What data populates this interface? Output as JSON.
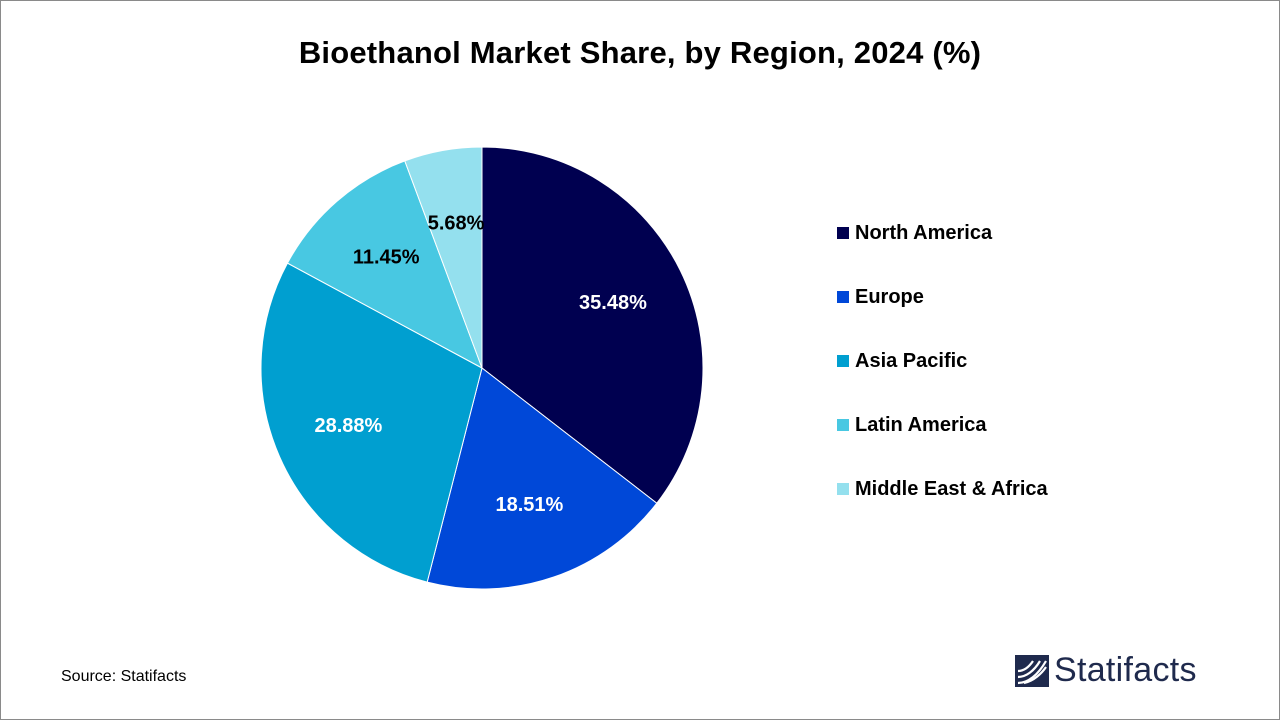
{
  "title": "Bioethanol Market Share, by Region, 2024 (%)",
  "source": "Source: Statifacts",
  "logo": {
    "text": "Statifacts",
    "color": "#1f2a4d"
  },
  "chart_data": {
    "type": "pie",
    "title": "Bioethanol Market Share, by Region, 2024 (%)",
    "legend_position": "right",
    "slices": [
      {
        "label": "North America",
        "value": 35.48,
        "display": "35.48%",
        "color": "#000050",
        "text_color": "#ffffff"
      },
      {
        "label": "Europe",
        "value": 18.51,
        "display": "18.51%",
        "color": "#0048d8",
        "text_color": "#ffffff"
      },
      {
        "label": "Asia Pacific",
        "value": 28.88,
        "display": "28.88%",
        "color": "#009fd0",
        "text_color": "#ffffff"
      },
      {
        "label": "Latin America",
        "value": 11.45,
        "display": "11.45%",
        "color": "#48c8e2",
        "text_color": "#000000"
      },
      {
        "label": "Middle East & Africa",
        "value": 5.68,
        "display": "5.68%",
        "color": "#94e0ee",
        "text_color": "#000000"
      }
    ]
  }
}
